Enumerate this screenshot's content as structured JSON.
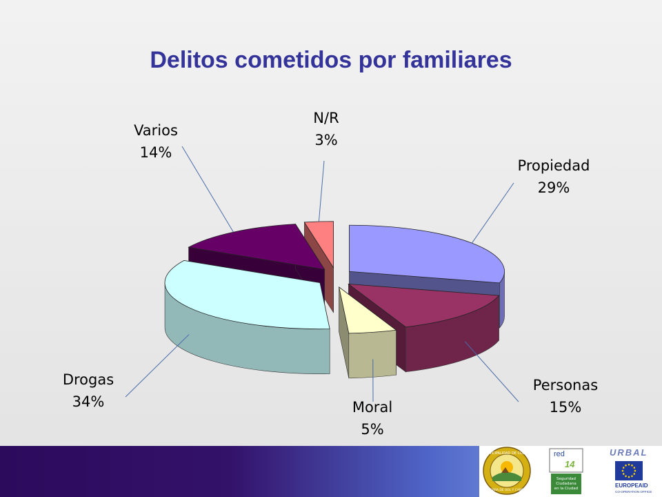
{
  "title": "Delitos cometidos por familiares",
  "chart_data": {
    "type": "pie",
    "title": "Delitos cometidos por familiares",
    "style": "3d-exploded",
    "slices": [
      {
        "label": "Propiedad",
        "value": 29,
        "display": "29%",
        "color": "#9999ff"
      },
      {
        "label": "Personas",
        "value": 15,
        "display": "15%",
        "color": "#993366"
      },
      {
        "label": "Moral",
        "value": 5,
        "display": "5%",
        "color": "#ffffcc"
      },
      {
        "label": "Drogas",
        "value": 34,
        "display": "34%",
        "color": "#ccffff"
      },
      {
        "label": "Varios",
        "value": 14,
        "display": "14%",
        "color": "#660066"
      },
      {
        "label": "N/R",
        "value": 3,
        "display": "3%",
        "color": "#ff8080"
      }
    ]
  },
  "logos": {
    "munic": "MUNICIPALIDAD DE COLINA",
    "munic_motto": "TIERRA DE SOL Y CAMPO",
    "red": "red",
    "red_num": "14",
    "red_text_1": "Seguridad",
    "red_text_2": "Ciudadana",
    "red_text_3": "en la Ciudad",
    "urbal": "URBAL",
    "europeaid": "EUROPEAID",
    "europeaid_sub": "CO-OPERATION OFFICE"
  }
}
